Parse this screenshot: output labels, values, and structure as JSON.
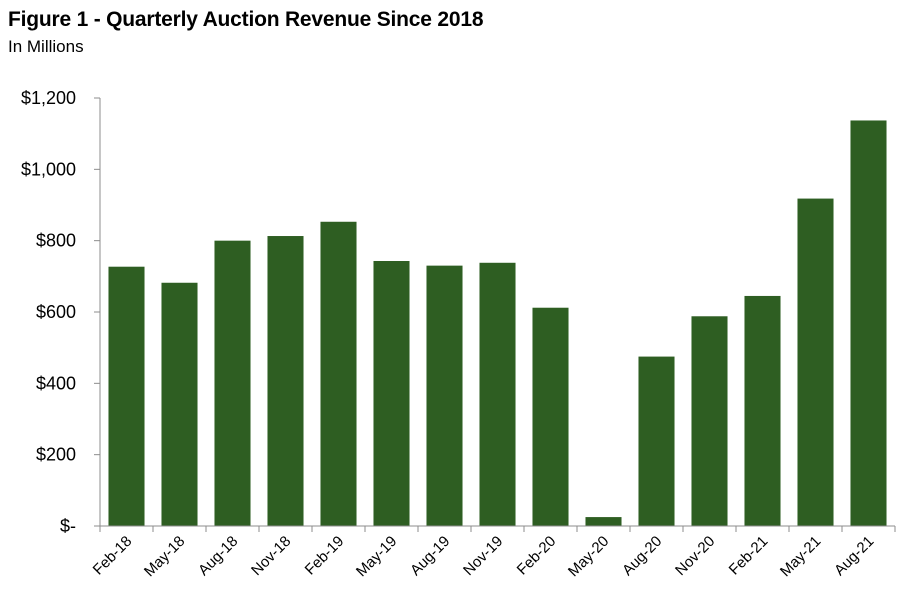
{
  "chart_data": {
    "type": "bar",
    "title": "Figure 1 - Quarterly Auction Revenue Since 2018",
    "subtitle": "In Millions",
    "xlabel": "",
    "ylabel": "",
    "ylim": [
      0,
      1200
    ],
    "yticks": [
      0,
      200,
      400,
      600,
      800,
      1000,
      1200
    ],
    "ytick_labels": [
      "$-",
      "$200",
      "$400",
      "$600",
      "$800",
      "$1,000",
      "$1,200"
    ],
    "grid": false,
    "legend": "none",
    "bar_color": "#2e5e22",
    "categories": [
      "Feb-18",
      "May-18",
      "Aug-18",
      "Nov-18",
      "Feb-19",
      "May-19",
      "Aug-19",
      "Nov-19",
      "Feb-20",
      "May-20",
      "Aug-20",
      "Nov-20",
      "Feb-21",
      "May-21",
      "Aug-21"
    ],
    "values": [
      727,
      682,
      800,
      813,
      853,
      743,
      730,
      738,
      612,
      25,
      475,
      588,
      645,
      918,
      1137
    ]
  }
}
